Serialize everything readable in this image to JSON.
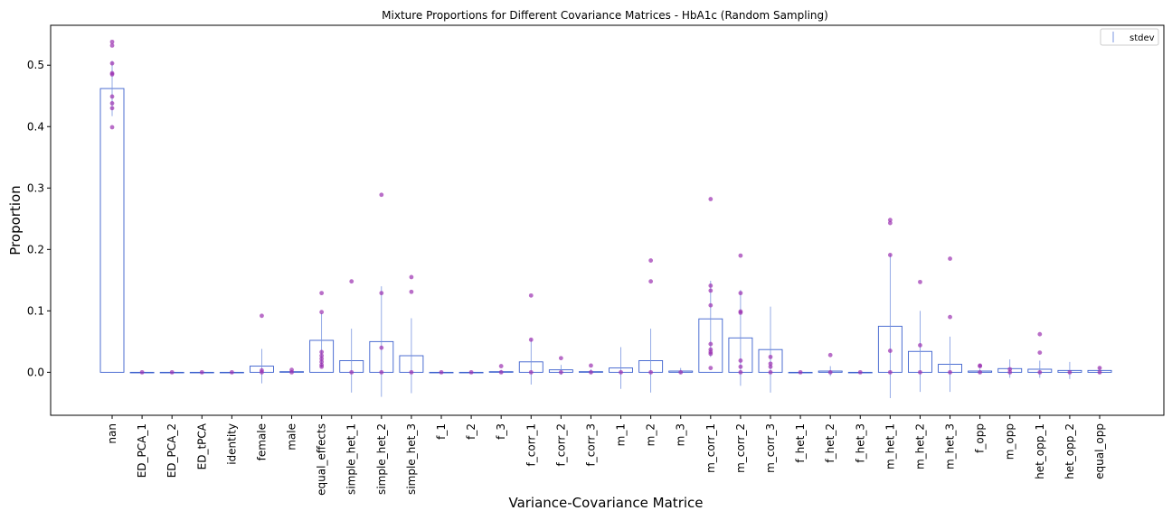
{
  "chart_data": {
    "type": "bar",
    "title": "Mixture Proportions for Different Covariance Matrices - HbA1c (Random Sampling)",
    "xlabel": "Variance-Covariance Matrice",
    "ylabel": "Proportion",
    "ylim": [
      -0.07,
      0.565
    ],
    "yticks": [
      "0.0",
      "0.1",
      "0.2",
      "0.3",
      "0.4",
      "0.5"
    ],
    "grid": false,
    "legend": {
      "position": "top-right",
      "entries": [
        "stdev"
      ]
    },
    "colors": {
      "bar_edge": "#3a5fcd",
      "errorbar": "#7b96e0",
      "points": "#9b30b0"
    },
    "categories": [
      "nan",
      "ED_PCA_1",
      "ED_PCA_2",
      "ED_tPCA",
      "identity",
      "female",
      "male",
      "equal_effects",
      "simple_het_1",
      "simple_het_2",
      "simple_het_3",
      "f_1",
      "f_2",
      "f_3",
      "f_corr_1",
      "f_corr_2",
      "f_corr_3",
      "m_1",
      "m_2",
      "m_3",
      "m_corr_1",
      "m_corr_2",
      "m_corr_3",
      "f_het_1",
      "f_het_2",
      "f_het_3",
      "m_het_1",
      "m_het_2",
      "m_het_3",
      "f_opp",
      "m_opp",
      "het_opp_1",
      "het_opp_2",
      "equal_opp"
    ],
    "values": [
      0.462,
      0.0,
      0.0,
      0.0,
      0.0,
      0.01,
      0.001,
      0.052,
      0.019,
      0.05,
      0.027,
      0.0,
      0.0,
      0.001,
      0.017,
      0.004,
      0.001,
      0.007,
      0.019,
      0.002,
      0.087,
      0.056,
      0.037,
      0.0,
      0.002,
      0.0,
      0.075,
      0.034,
      0.013,
      0.002,
      0.006,
      0.005,
      0.003,
      0.003
    ],
    "stdev": [
      0.045,
      0.0,
      0.0,
      0.0,
      0.0,
      0.028,
      0.002,
      0.044,
      0.052,
      0.09,
      0.061,
      0.0,
      0.0,
      0.003,
      0.037,
      0.008,
      0.004,
      0.034,
      0.052,
      0.005,
      0.062,
      0.078,
      0.07,
      0.0,
      0.008,
      0.0,
      0.117,
      0.066,
      0.045,
      0.004,
      0.015,
      0.014,
      0.014,
      0.006
    ],
    "points": [
      [
        0.538,
        0.532,
        0.503,
        0.487,
        0.485,
        0.449,
        0.438,
        0.43,
        0.399
      ],
      [
        0.0
      ],
      [
        0.0
      ],
      [
        0.0
      ],
      [
        0.0
      ],
      [
        0.092,
        0.003,
        0.0
      ],
      [
        0.004,
        0.0
      ],
      [
        0.129,
        0.098,
        0.033,
        0.027,
        0.022,
        0.017,
        0.012,
        0.009
      ],
      [
        0.148,
        0.0
      ],
      [
        0.289,
        0.129,
        0.04,
        0.0
      ],
      [
        0.155,
        0.131,
        0.0
      ],
      [
        0.0
      ],
      [
        0.0
      ],
      [
        0.01,
        0.0
      ],
      [
        0.125,
        0.053,
        0.0
      ],
      [
        0.023,
        0.0
      ],
      [
        0.011,
        0.0
      ],
      [
        0.0
      ],
      [
        0.182,
        0.148,
        0.0
      ],
      [
        0.0
      ],
      [
        0.282,
        0.141,
        0.133,
        0.109,
        0.046,
        0.037,
        0.033,
        0.03,
        0.007
      ],
      [
        0.19,
        0.129,
        0.099,
        0.097,
        0.019,
        0.009,
        0.0
      ],
      [
        0.025,
        0.014,
        0.009,
        0.0
      ],
      [
        0.0
      ],
      [
        0.028,
        0.0
      ],
      [
        0.0
      ],
      [
        0.248,
        0.243,
        0.191,
        0.035,
        0.0
      ],
      [
        0.147,
        0.044,
        0.0
      ],
      [
        0.185,
        0.09,
        0.0
      ],
      [
        0.011,
        0.01,
        0.0
      ],
      [
        0.005,
        0.0
      ],
      [
        0.062,
        0.032,
        0.0
      ],
      [
        0.0
      ],
      [
        0.007,
        0.0
      ]
    ]
  }
}
